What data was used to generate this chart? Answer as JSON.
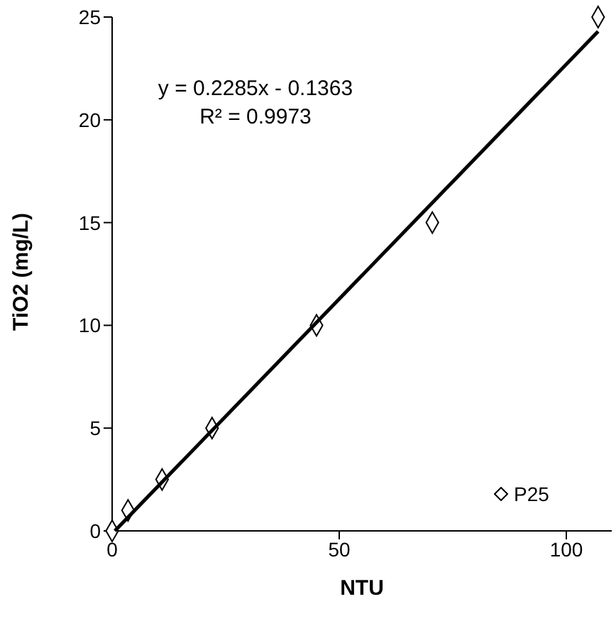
{
  "chart_data": {
    "type": "scatter",
    "xlabel": "NTU",
    "ylabel": "TiO2 (mg/L)",
    "xlim": [
      0,
      110
    ],
    "xticks": [
      0,
      50,
      100
    ],
    "ylim": [
      0,
      25
    ],
    "yticks": [
      0,
      5,
      10,
      15,
      20,
      25
    ],
    "grid": false,
    "legend": "bottom right",
    "marker": "diamond",
    "annotations": [
      "y = 0.2285x - 0.1363",
      "R² = 0.9973"
    ],
    "series": [
      {
        "name": "P25",
        "color": "#000000",
        "x": [
          0,
          3.5,
          11,
          22,
          45,
          70.5,
          107
        ],
        "values": [
          0,
          1,
          2.5,
          5,
          10,
          15,
          25
        ]
      },
      {
        "type": "line",
        "color": "#000000",
        "line_style": "solid",
        "marker": "none",
        "x": [
          0.6,
          107
        ],
        "values": [
          0,
          24.3
        ]
      }
    ]
  }
}
